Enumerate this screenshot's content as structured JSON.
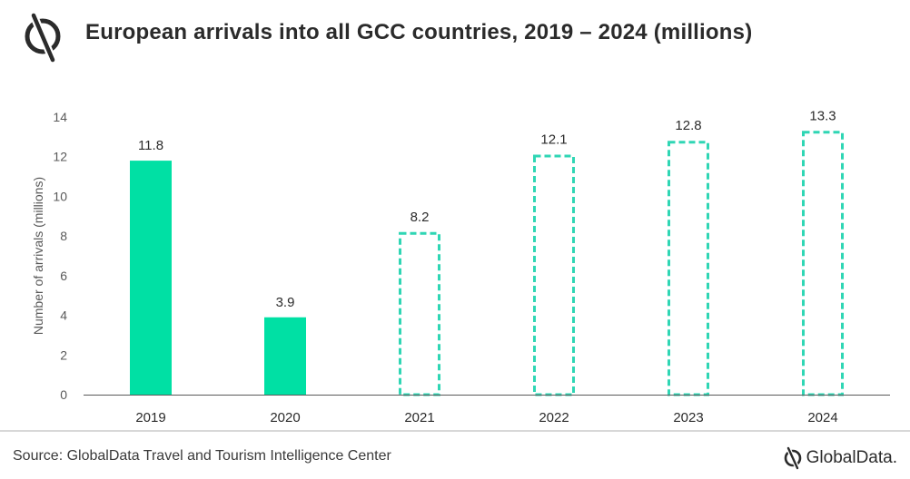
{
  "header": {
    "title": "European arrivals into all GCC countries, 2019 – 2024 (millions)"
  },
  "footer": {
    "source": "Source: GlobalData Travel and Tourism Intelligence Center",
    "brand": "GlobalData."
  },
  "colors": {
    "bar_fill": "#00e0a4",
    "forecast_outline": "#2fd6b4",
    "axis": "#595959",
    "text": "#2b2b2b"
  },
  "chart_data": {
    "type": "bar",
    "categories": [
      "2019",
      "2020",
      "2021",
      "2022",
      "2023",
      "2024"
    ],
    "values": [
      11.8,
      3.9,
      8.2,
      12.1,
      12.8,
      13.3
    ],
    "value_labels": [
      "11.8",
      "3.9",
      "8.2",
      "12.1",
      "12.8",
      "13.3"
    ],
    "forecast": [
      false,
      false,
      true,
      true,
      true,
      true
    ],
    "ylabel": "Number of arrivals (millions)",
    "yticks": [
      "0",
      "2",
      "4",
      "6",
      "8",
      "10",
      "12",
      "14"
    ],
    "ylim": [
      0,
      14
    ],
    "grid": false
  }
}
